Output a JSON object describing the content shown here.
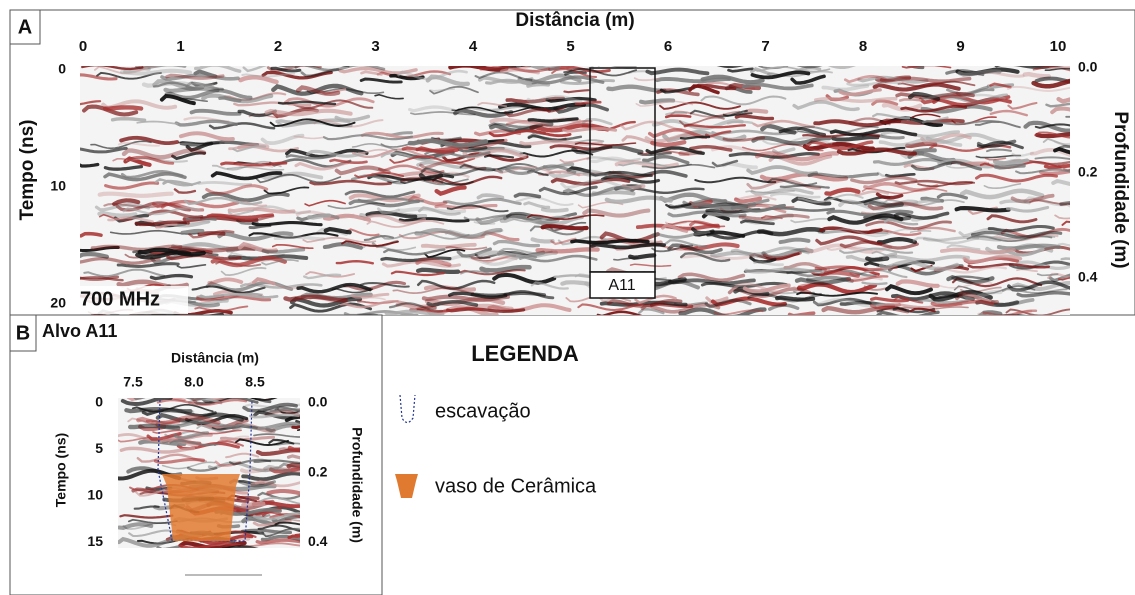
{
  "panel_a": {
    "label": "A",
    "x_axis_title": "Distância (m)",
    "y_axis_title": "Tempo (ns)",
    "y2_axis_title": "Profundidade (m)",
    "x_ticks": [
      "0",
      "1",
      "2",
      "3",
      "4",
      "5",
      "6",
      "7",
      "8",
      "9",
      "10"
    ],
    "y_ticks": [
      "0",
      "10",
      "20"
    ],
    "y2_ticks": [
      "0.0",
      "0.2",
      "0.4"
    ],
    "frequency": "700 MHz",
    "target_label": "A11"
  },
  "panel_b": {
    "label": "B",
    "title": "Alvo A11",
    "x_axis_title": "Distância (m)",
    "y_axis_title": "Tempo (ns)",
    "y2_axis_title": "Profundidade (m)",
    "x_ticks": [
      "7.5",
      "8.0",
      "8.5"
    ],
    "y_ticks": [
      "0",
      "5",
      "10",
      "15"
    ],
    "y2_ticks": [
      "0.0",
      "0.2",
      "0.4"
    ]
  },
  "legend": {
    "title": "LEGENDA",
    "items": [
      "escavação",
      "vaso de Cerâmica"
    ]
  }
}
